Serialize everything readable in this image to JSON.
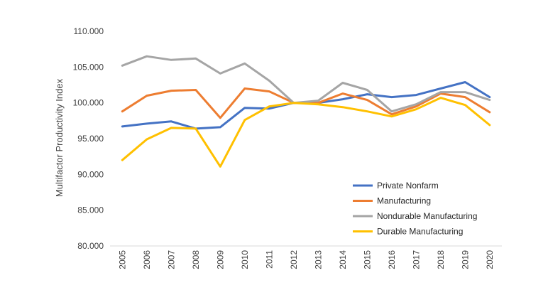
{
  "chart_data": {
    "type": "line",
    "title": "",
    "xlabel": "",
    "ylabel": "Multifactor Productivity Index",
    "ylim": [
      80,
      110
    ],
    "ytick_step": 5,
    "ytick_labels": [
      "80.000",
      "85.000",
      "90.000",
      "95.000",
      "100.000",
      "105.000",
      "110.000"
    ],
    "grid": false,
    "legend_position": "lower-right",
    "x": [
      "2005",
      "2006",
      "2007",
      "2008",
      "2009",
      "2010",
      "2011",
      "2012",
      "2013",
      "2014",
      "2015",
      "2016",
      "2017",
      "2018",
      "2019",
      "2020"
    ],
    "series": [
      {
        "name": "Private Nonfarm",
        "color": "#4472C4",
        "values": [
          96.7,
          97.1,
          97.4,
          96.4,
          96.6,
          99.3,
          99.2,
          100.0,
          100.0,
          100.5,
          101.2,
          100.8,
          101.1,
          102.0,
          102.9,
          100.8
        ]
      },
      {
        "name": "Manufacturing",
        "color": "#ED7D31",
        "values": [
          98.8,
          101.0,
          101.7,
          101.8,
          97.9,
          102.0,
          101.6,
          100.0,
          100.0,
          101.3,
          100.4,
          98.4,
          99.5,
          101.3,
          100.8,
          98.7
        ]
      },
      {
        "name": "Nondurable Manufacturing",
        "color": "#A5A5A5",
        "values": [
          105.2,
          106.5,
          106.0,
          106.2,
          104.1,
          105.5,
          103.1,
          100.0,
          100.3,
          102.8,
          101.8,
          98.8,
          99.8,
          101.5,
          101.5,
          100.4
        ]
      },
      {
        "name": "Durable Manufacturing",
        "color": "#FFC000",
        "values": [
          92.0,
          94.9,
          96.5,
          96.4,
          91.1,
          97.6,
          99.5,
          100.0,
          99.8,
          99.4,
          98.8,
          98.1,
          99.1,
          100.7,
          99.7,
          96.9
        ]
      }
    ]
  }
}
